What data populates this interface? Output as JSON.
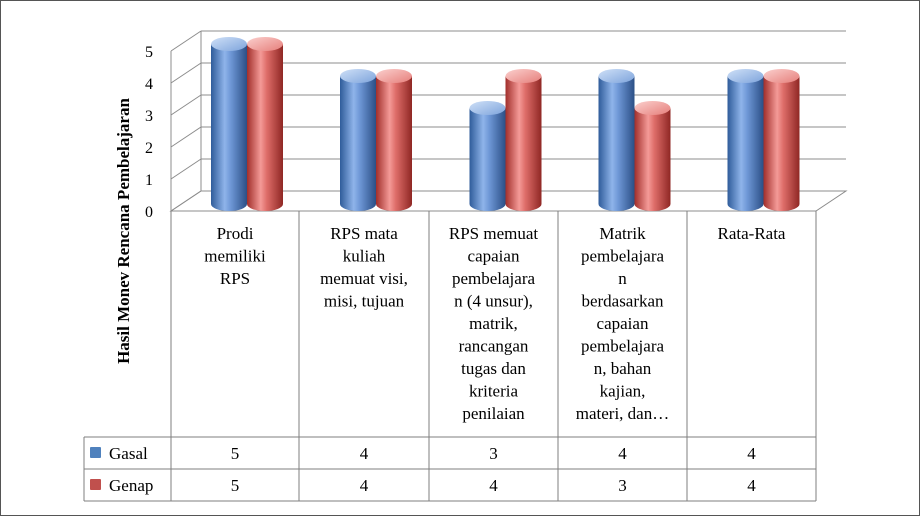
{
  "chart_data": {
    "type": "bar",
    "ylabel": "Hasil Monev Rencana Pembelajaran",
    "ylim": [
      0,
      5
    ],
    "yticks": [
      "0",
      "1",
      "2",
      "3",
      "4",
      "5"
    ],
    "categories": [
      [
        "Prodi",
        "memiliki",
        "RPS"
      ],
      [
        "RPS mata",
        "kuliah",
        "memuat visi,",
        "misi, tujuan"
      ],
      [
        "RPS memuat",
        "capaian",
        "pembelajara",
        "n (4 unsur),",
        "matrik,",
        "rancangan",
        "tugas dan",
        "kriteria",
        "penilaian"
      ],
      [
        "Matrik",
        "pembelajara",
        "n",
        "berdasarkan",
        "capaian",
        "pembelajara",
        "n, bahan",
        "kajian,",
        "materi, dan…"
      ],
      [
        "Rata-Rata"
      ]
    ],
    "series": [
      {
        "name": "Gasal",
        "values": [
          5,
          4,
          3,
          4,
          4
        ],
        "color": "#4f81bd"
      },
      {
        "name": "Genap",
        "values": [
          5,
          4,
          4,
          3,
          4
        ],
        "color": "#c0504d"
      }
    ],
    "table": {
      "rows": [
        {
          "name": "Gasal",
          "cells": [
            "5",
            "4",
            "3",
            "4",
            "4"
          ]
        },
        {
          "name": "Genap",
          "cells": [
            "5",
            "4",
            "4",
            "3",
            "4"
          ]
        }
      ]
    },
    "grid": true,
    "legend": "data table"
  }
}
